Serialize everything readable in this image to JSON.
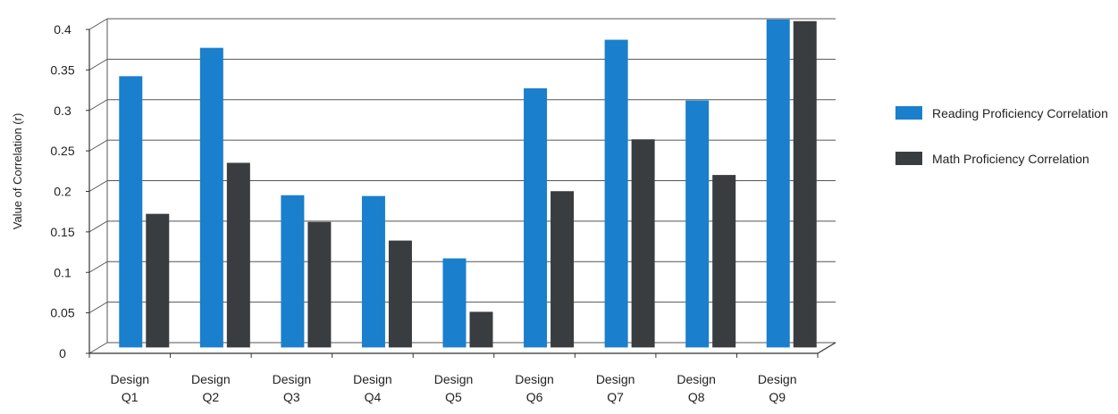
{
  "chart_data": {
    "type": "bar",
    "title": "",
    "xlabel": "",
    "ylabel": "Value of Correlation (r)",
    "ylim": [
      0,
      0.4
    ],
    "yticks": [
      "0",
      "0.05",
      "0.1",
      "0.15",
      "0.2",
      "0.25",
      "0.3",
      "0.35",
      "0.4"
    ],
    "yticks_values": [
      0,
      0.05,
      0.1,
      0.15,
      0.2,
      0.25,
      0.3,
      0.35,
      0.4
    ],
    "categories": [
      [
        "Design",
        "Q1"
      ],
      [
        "Design",
        "Q2"
      ],
      [
        "Design",
        "Q3"
      ],
      [
        "Design",
        "Q4"
      ],
      [
        "Design",
        "Q5"
      ],
      [
        "Design",
        "Q6"
      ],
      [
        "Design",
        "Q7"
      ],
      [
        "Design",
        "Q8"
      ],
      [
        "Design",
        "Q9"
      ]
    ],
    "series": [
      {
        "name": "Reading Proficiency Correlation",
        "color": "#1a7fcc",
        "values": [
          0.335,
          0.37,
          0.188,
          0.187,
          0.11,
          0.32,
          0.38,
          0.305,
          0.405
        ]
      },
      {
        "name": "Math Proficiency Correlation",
        "color": "#3a3d40",
        "values": [
          0.165,
          0.228,
          0.155,
          0.132,
          0.044,
          0.193,
          0.257,
          0.213,
          0.403
        ]
      }
    ],
    "grid": true,
    "legend_position": "right"
  }
}
